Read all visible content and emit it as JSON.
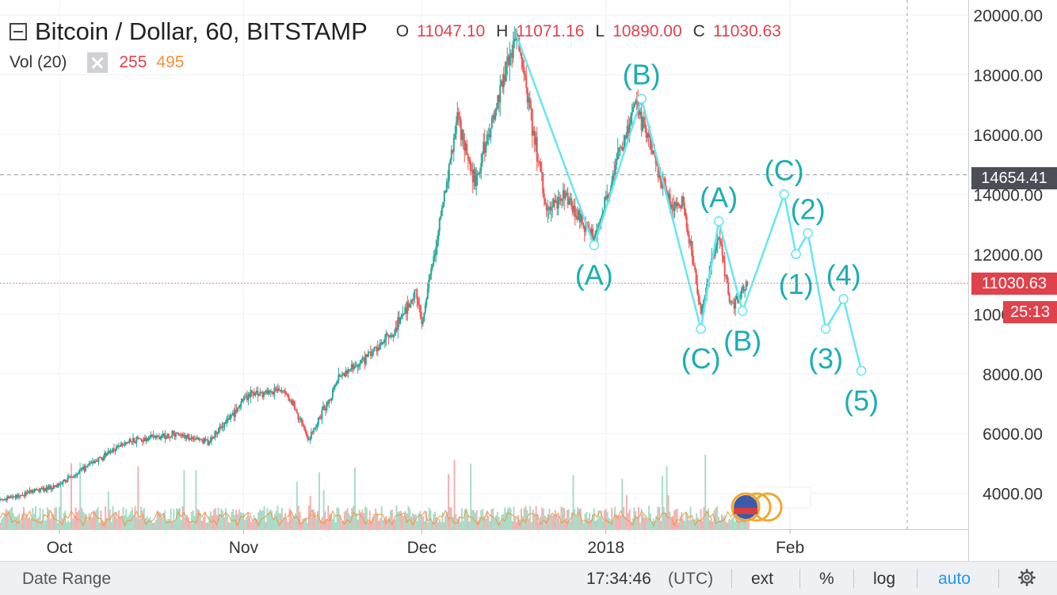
{
  "legend": {
    "symbol": "Bitcoin / Dollar, 60, BITSTAMP",
    "o_label": "O",
    "o_value": "11047.10",
    "h_label": "H",
    "h_value": "11071.16",
    "l_label": "L",
    "l_value": "10890.00",
    "c_label": "C",
    "c_value": "11030.63"
  },
  "volume_legend": {
    "name": "Vol (20)",
    "value_a": "255",
    "value_b": "495"
  },
  "price_tags": {
    "crosshair": "14654.41",
    "last_price": "11030.63",
    "countdown": "25:13"
  },
  "bottom_bar": {
    "date_range": "Date Range",
    "time": "17:34:46",
    "timezone": "(UTC)",
    "ext": "ext",
    "percent": "%",
    "log": "log",
    "auto": "auto"
  },
  "colors": {
    "up": "#26a69a",
    "down": "#ef5350",
    "wave": "#66e6f2",
    "wave_label": "#1aaeb2",
    "last_price": "#e0424c",
    "crosshair_tag": "#4a4e57",
    "auto": "#2196f3"
  },
  "chart_data": {
    "type": "candlestick",
    "y_axis": {
      "ticks": [
        4000,
        6000,
        8000,
        10000,
        12000,
        14000,
        16000,
        18000,
        20000
      ],
      "tick_labels": [
        "4000.00",
        "6000.00",
        "8000.00",
        "10000.00",
        "12000.00",
        "14000.00",
        "16000.00",
        "18000.00",
        "20000.00"
      ],
      "range": [
        2800,
        20500
      ]
    },
    "x_axis": {
      "labels": [
        "Oct",
        "Nov",
        "Dec",
        "2018",
        "Feb"
      ],
      "label_dates": [
        "2017-10-01",
        "2017-11-01",
        "2017-12-01",
        "2018-01-01",
        "2018-02-01"
      ],
      "range": [
        "2017-09-21",
        "2018-03-03"
      ]
    },
    "price_path": [
      {
        "date": "2017-09-21",
        "price": 3750
      },
      {
        "date": "2017-10-01",
        "price": 4300
      },
      {
        "date": "2017-10-12",
        "price": 5700
      },
      {
        "date": "2017-10-21",
        "price": 6000
      },
      {
        "date": "2017-10-26",
        "price": 5700
      },
      {
        "date": "2017-11-02",
        "price": 7300
      },
      {
        "date": "2017-11-08",
        "price": 7500
      },
      {
        "date": "2017-11-12",
        "price": 5800
      },
      {
        "date": "2017-11-17",
        "price": 7800
      },
      {
        "date": "2017-11-26",
        "price": 9300
      },
      {
        "date": "2017-11-30",
        "price": 10800
      },
      {
        "date": "2017-12-01",
        "price": 9600
      },
      {
        "date": "2017-12-07",
        "price": 16500
      },
      {
        "date": "2017-12-10",
        "price": 14500
      },
      {
        "date": "2017-12-17",
        "price": 19400
      },
      {
        "date": "2017-12-22",
        "price": 13500
      },
      {
        "date": "2017-12-25",
        "price": 14000
      },
      {
        "date": "2017-12-30",
        "price": 12500
      },
      {
        "date": "2018-01-06",
        "price": 17100
      },
      {
        "date": "2018-01-12",
        "price": 13500
      },
      {
        "date": "2018-01-14",
        "price": 13800
      },
      {
        "date": "2018-01-17",
        "price": 10000
      },
      {
        "date": "2018-01-20",
        "price": 12800
      },
      {
        "date": "2018-01-22",
        "price": 10200
      },
      {
        "date": "2018-01-25",
        "price": 11100
      }
    ],
    "wave_points": [
      {
        "label": "",
        "date": "2017-12-17",
        "price": 19300
      },
      {
        "label": "(A)",
        "date": "2017-12-30",
        "price": 12300
      },
      {
        "label": "(B)",
        "date": "2018-01-07",
        "price": 17200
      },
      {
        "label": "(C)",
        "date": "2018-01-17",
        "price": 9500
      },
      {
        "label": "(A)",
        "date": "2018-01-20",
        "price": 13100
      },
      {
        "label": "(B)",
        "date": "2018-01-24",
        "price": 10100
      },
      {
        "label": "(C)",
        "date": "2018-01-31",
        "price": 14000
      },
      {
        "label": "(1)",
        "date": "2018-02-02",
        "price": 12000
      },
      {
        "label": "(2)",
        "date": "2018-02-04",
        "price": 12700
      },
      {
        "label": "(3)",
        "date": "2018-02-07",
        "price": 9500
      },
      {
        "label": "(4)",
        "date": "2018-02-10",
        "price": 10500
      },
      {
        "label": "(5)",
        "date": "2018-02-13",
        "price": 8100
      }
    ],
    "crosshair_price": 14654.41,
    "last_price": 11030.63
  }
}
